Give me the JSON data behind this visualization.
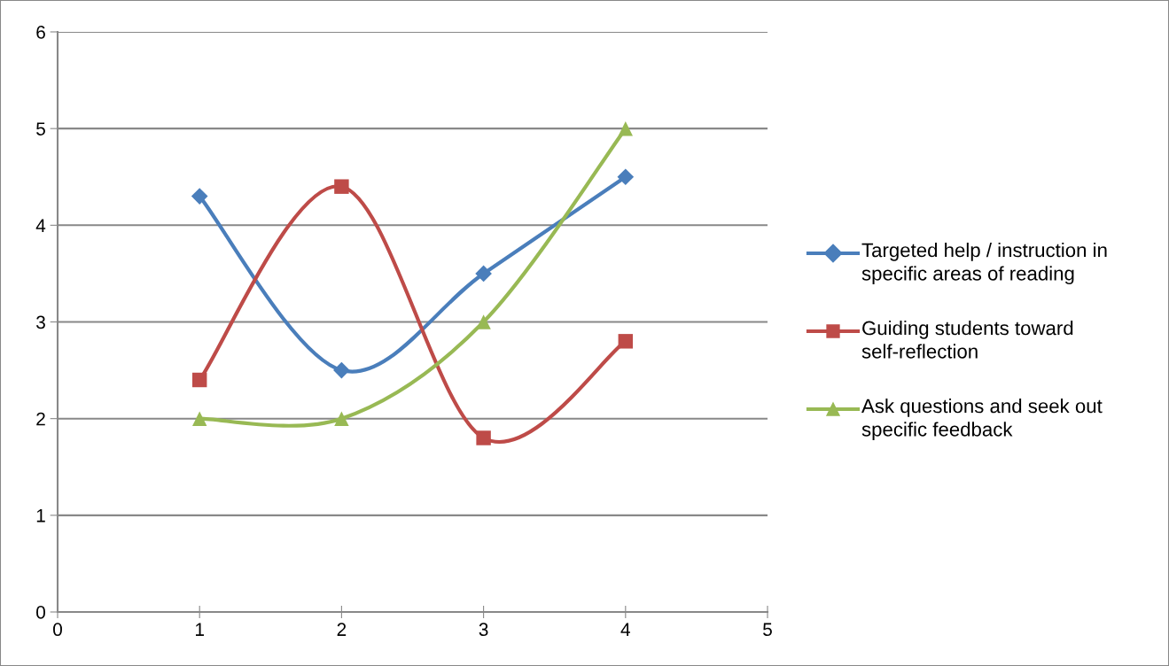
{
  "chart_data": {
    "type": "line",
    "x": [
      1,
      2,
      3,
      4
    ],
    "series": [
      {
        "name": "Targeted help / instruction in specific areas of reading",
        "color": "#4a7ebb",
        "marker": "diamond",
        "values": [
          4.3,
          2.5,
          3.5,
          4.5
        ]
      },
      {
        "name": "Guiding students toward self-reflection",
        "color": "#be4b48",
        "marker": "square",
        "values": [
          2.4,
          4.4,
          1.8,
          2.8
        ]
      },
      {
        "name": "Ask questions and seek out specific feedback",
        "color": "#98b954",
        "marker": "triangle",
        "values": [
          2,
          2,
          3,
          5
        ]
      }
    ],
    "xlim": [
      0,
      5
    ],
    "xticks": [
      0,
      1,
      2,
      3,
      4,
      5
    ],
    "ylim": [
      0,
      6
    ],
    "yticks": [
      0,
      1,
      2,
      3,
      4,
      5,
      6
    ],
    "grid": "y",
    "legend": "right",
    "line_style": "solid"
  }
}
